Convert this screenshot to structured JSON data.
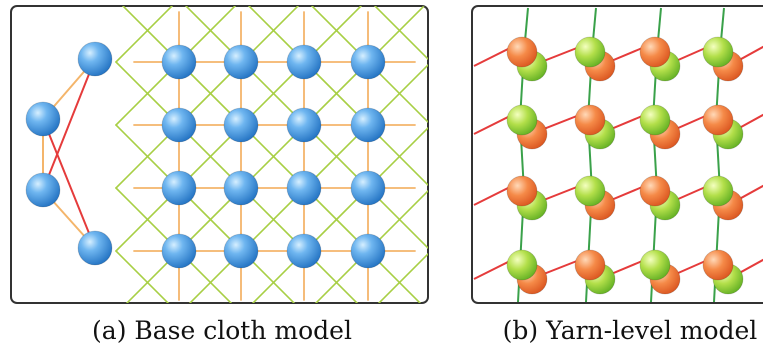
{
  "panels": [
    {
      "id": "a",
      "caption": "(a) Base cloth model"
    },
    {
      "id": "b",
      "caption": "(b) Yarn-level model"
    }
  ],
  "colors": {
    "frame": "#333333",
    "base_node_fill": "#3a8fd8",
    "base_node_highlight": "#bfe3ff",
    "stretch_spring": "#f4b56b",
    "shear_spring": "#a8cf45",
    "bend_spring": "#e53b3b",
    "weft_yarn": "#e53b3b",
    "warp_yarn": "#3aa14a",
    "crossing_orange": "#f27a3a",
    "crossing_green": "#9bd13c"
  },
  "icons": {
    "base_node": "blue-sphere-icon",
    "crossing": "yarn-crossing-icon"
  }
}
